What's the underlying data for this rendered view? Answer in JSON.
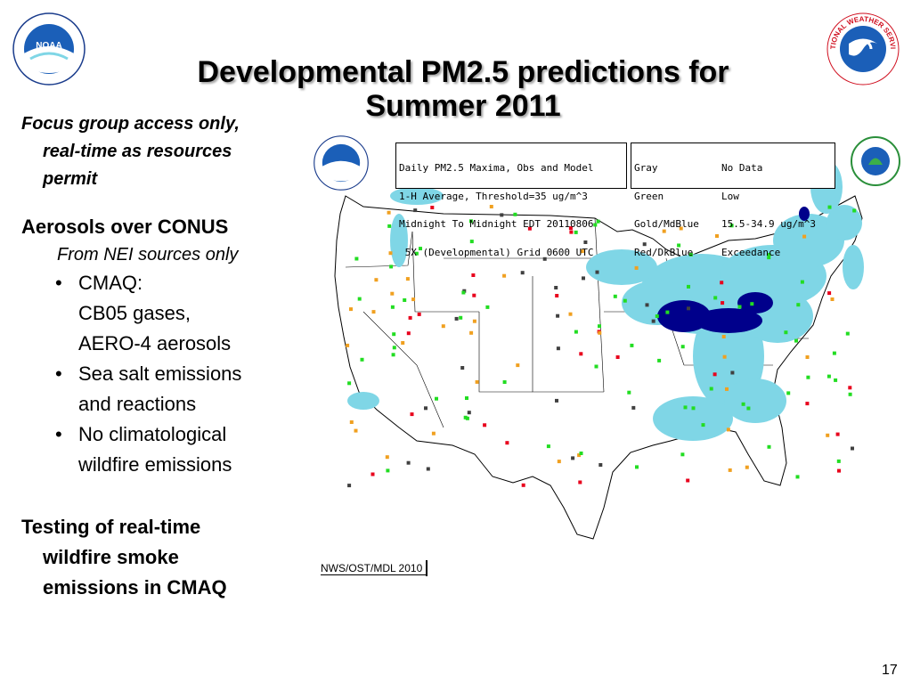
{
  "slide": {
    "title_line1": "Developmental PM2.5 predictions for",
    "title_line2": "Summer 2011",
    "page_number": "17"
  },
  "left": {
    "focus_line1": "Focus group access only,",
    "focus_line2": "real-time as resources",
    "focus_line3": "permit",
    "aerosols_heading": "Aerosols over CONUS",
    "aerosols_sub": "From NEI sources only",
    "bullets": [
      {
        "line1": "CMAQ:",
        "line2": "CB05 gases,",
        "line3": "AERO-4 aerosols"
      },
      {
        "line1": "Sea salt emissions",
        "line2": "and reactions"
      },
      {
        "line1": "No climatological",
        "line2": "wildfire emissions"
      }
    ],
    "testing_line1": "Testing of real-time",
    "testing_line2": "wildfire smoke",
    "testing_line3": "emissions in CMAQ"
  },
  "map": {
    "legend_left": [
      "Daily PM2.5 Maxima, Obs and Model",
      "1-H Average, Threshold=35 ug/m^3",
      "Midnight To Midnight EDT 20110806",
      " 5X (Developmental) Grid 0600 UTC"
    ],
    "legend_right": [
      {
        "color": "Gray",
        "meaning": "No Data"
      },
      {
        "color": "Green",
        "meaning": "Low"
      },
      {
        "color": "Gold/MdBlue",
        "meaning": "15.5-34.9 ug/m^3"
      },
      {
        "color": "Red/DkBlue",
        "meaning": "Exceedance"
      }
    ],
    "credit": "NWS/OST/MDL 2010",
    "colors": {
      "light_blue": "#7fd6e6",
      "dark_blue": "#00008b",
      "red": "#e8001c",
      "gold": "#f0a020",
      "green": "#22dd22",
      "gray": "#404040"
    }
  },
  "logos": {
    "nws_text": "NATIONAL WEATHER SERVICE",
    "noaa_text": "NOAA"
  }
}
